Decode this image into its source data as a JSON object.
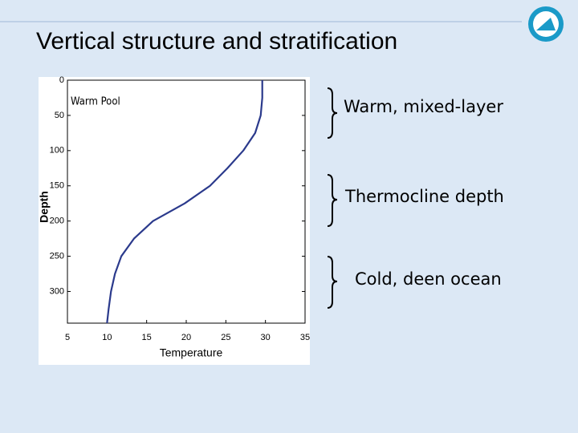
{
  "slide": {
    "title": "Vertical structure and stratification",
    "labels": [
      "Warm, mixed-layer",
      "Thermocline depth",
      "Cold, deen ocean"
    ]
  },
  "chart_data": {
    "type": "line",
    "annotation": "Warm Pool",
    "xlabel": "Temperature",
    "ylabel": "Depth",
    "x": [
      29.6,
      29.6,
      29.4,
      28.7,
      27.2,
      25.2,
      23.0,
      19.8,
      15.8,
      13.4,
      11.8,
      11.0,
      10.5,
      10.2,
      10.0
    ],
    "series": [
      {
        "color": "#2b3a8c",
        "values": [
          0,
          25,
          50,
          75,
          100,
          125,
          150,
          175,
          200,
          225,
          250,
          275,
          300,
          325,
          345
        ]
      }
    ],
    "xlim": [
      5,
      35
    ],
    "xticks": [
      5,
      10,
      15,
      20,
      25,
      30,
      35
    ],
    "ylim": [
      345,
      0
    ],
    "yticks": [
      0,
      50,
      100,
      150,
      200,
      250,
      300
    ]
  }
}
